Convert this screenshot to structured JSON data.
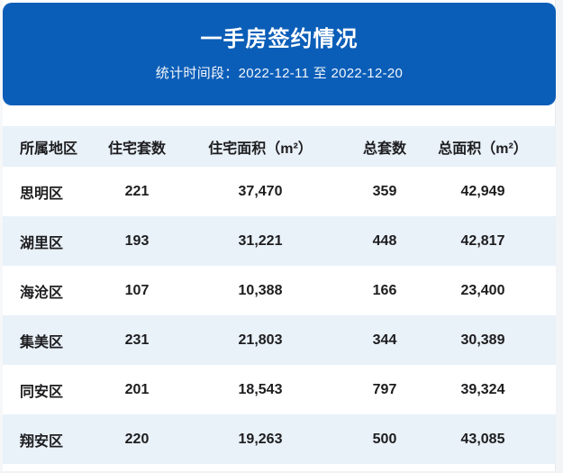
{
  "banner": {
    "title": "一手房签约情况",
    "subtitle": "统计时间段：2022-12-11 至 2022-12-20"
  },
  "table": {
    "columns": [
      "所属地区",
      "住宅套数",
      "住宅面积（m²）",
      "总套数",
      "总面积（m²）"
    ],
    "rows": [
      [
        "思明区",
        "221",
        "37,470",
        "359",
        "42,949"
      ],
      [
        "湖里区",
        "193",
        "31,221",
        "448",
        "42,817"
      ],
      [
        "海沧区",
        "107",
        "10,388",
        "166",
        "23,400"
      ],
      [
        "集美区",
        "231",
        "21,803",
        "344",
        "30,389"
      ],
      [
        "同安区",
        "201",
        "18,543",
        "797",
        "39,324"
      ],
      [
        "翔安区",
        "220",
        "19,263",
        "500",
        "43,085"
      ]
    ]
  },
  "colors": {
    "banner_background": "#0B5EB8",
    "banner_text": "#FFFFFF",
    "stripe_background": "#E9F1F9",
    "table_text": "#1D1D1F"
  },
  "chart_data": {
    "type": "table",
    "title": "一手房签约情况",
    "subtitle": "统计时间段：2022-12-11 至 2022-12-20",
    "columns": [
      "所属地区",
      "住宅套数",
      "住宅面积（m²）",
      "总套数",
      "总面积（m²）"
    ],
    "categories": [
      "思明区",
      "湖里区",
      "海沧区",
      "集美区",
      "同安区",
      "翔安区"
    ],
    "series": [
      {
        "name": "住宅套数",
        "values": [
          221,
          193,
          107,
          231,
          201,
          220
        ]
      },
      {
        "name": "住宅面积（m²）",
        "values": [
          37470,
          31221,
          10388,
          21803,
          18543,
          19263
        ]
      },
      {
        "name": "总套数",
        "values": [
          359,
          448,
          166,
          344,
          797,
          500
        ]
      },
      {
        "name": "总面积（m²）",
        "values": [
          42949,
          42817,
          23400,
          30389,
          39324,
          43085
        ]
      }
    ]
  }
}
